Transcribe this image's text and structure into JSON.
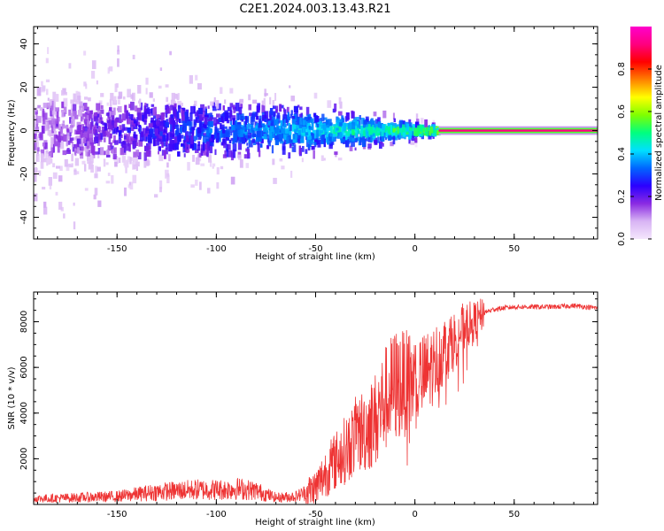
{
  "title": "C2E1.2024.003.13.43.R21",
  "colorbar": {
    "label": "Normalized spectral amplitude",
    "ticks": [
      "0.0",
      "0.2",
      "0.4",
      "0.6",
      "0.8"
    ],
    "range": [
      0,
      1
    ],
    "colors": [
      "#f4e6fc",
      "#d8b4f4",
      "#8a2be2",
      "#2b00ff",
      "#0066ff",
      "#00e0ff",
      "#00ff7f",
      "#7fff00",
      "#ffff00",
      "#ff8000",
      "#ff0000",
      "#ff007f",
      "#ff00cc"
    ]
  },
  "chart_data": [
    {
      "type": "heatmap",
      "xlabel": "Height of straight line (km)",
      "ylabel": "Frequency (Hz)",
      "xlim": [
        -192,
        92
      ],
      "ylim": [
        -50,
        48
      ],
      "xticks": [
        "-150",
        "-100",
        "-50",
        "0",
        "50"
      ],
      "yticks": [
        "-40",
        "-20",
        "0",
        "20",
        "40"
      ],
      "description_of_values": {
        "band_center_hz": 0,
        "line_start_km": 12,
        "noise_region_km": [
          -192,
          12
        ]
      }
    },
    {
      "type": "line",
      "xlabel": "Height of straight line (km)",
      "ylabel": "SNR (10 * v/v)",
      "xlim": [
        -192,
        92
      ],
      "ylim": [
        0,
        9300
      ],
      "xticks": [
        "-150",
        "-100",
        "-50",
        "0",
        "50"
      ],
      "yticks": [
        "2000",
        "4000",
        "6000",
        "8000"
      ],
      "color": "#ee3333",
      "series": [
        {
          "x": [
            -192,
            -170,
            -150,
            -130,
            -110,
            -95,
            -90,
            -80,
            -70,
            -60,
            -50,
            -45,
            -40,
            -35,
            -30,
            -25,
            -20,
            -15,
            -10,
            -5,
            0,
            5,
            10,
            15,
            20,
            25,
            30,
            35,
            40,
            50,
            60,
            70,
            80,
            92
          ],
          "y": [
            250,
            300,
            350,
            550,
            650,
            650,
            700,
            600,
            300,
            350,
            700,
            1400,
            1900,
            2400,
            3000,
            3300,
            3700,
            4600,
            5200,
            5300,
            5400,
            5600,
            6200,
            6800,
            7200,
            7800,
            8000,
            8400,
            8550,
            8650,
            8650,
            8650,
            8700,
            8600
          ]
        }
      ]
    }
  ]
}
